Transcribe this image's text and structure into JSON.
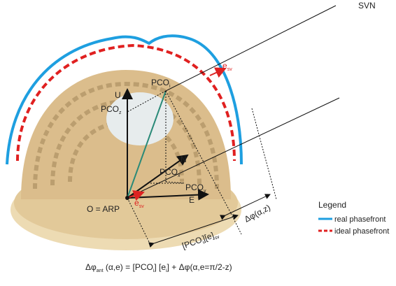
{
  "labels": {
    "svn": {
      "text": "SVN"
    },
    "esv_far": {
      "text": "e",
      "sub": "sv"
    },
    "pco_i": {
      "text": "PCO",
      "sub": "i"
    },
    "u": {
      "text": "U"
    },
    "pco_z": {
      "text": "PCO",
      "sub": "z"
    },
    "pco_x": {
      "text": "PCO",
      "sub": "x"
    },
    "n": {
      "text": "N"
    },
    "pco_y": {
      "text": "PCO",
      "sub": "y"
    },
    "e": {
      "text": "E"
    },
    "origin": {
      "text": "O = ARP"
    },
    "esv_near": {
      "text": "e",
      "sub": "sv"
    },
    "dphi": {
      "text": "Δφ(α,z)"
    },
    "proj": {
      "text": "[PCO",
      "sub": "i",
      "text2": "][e]",
      "sub2": "sv"
    }
  },
  "legend": {
    "title": "Legend",
    "items": [
      "real phasefront",
      "ideal phasefront"
    ]
  },
  "formula": {
    "a": "Δφ",
    "a_sub": "ant",
    "b": " (α,e) = [PCO",
    "b_sub": "i",
    "c": "] [e",
    "c_sub": "i",
    "d": "] + Δφ(α,e=π/2-z)"
  }
}
